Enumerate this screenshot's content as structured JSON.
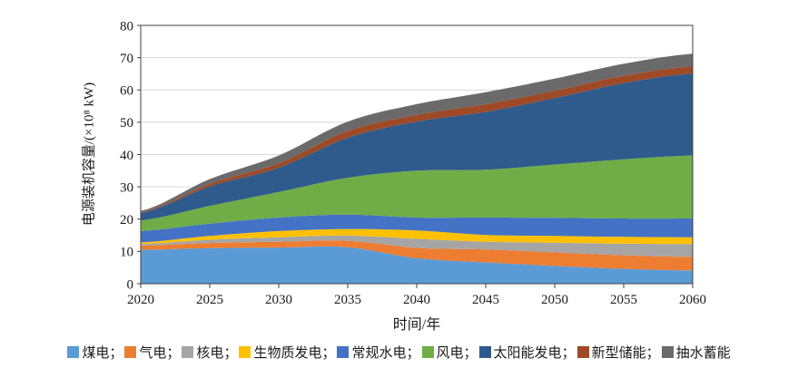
{
  "page": {
    "background": "#ffffff"
  },
  "chart_data": {
    "type": "area",
    "stacked": true,
    "title": "",
    "xlabel": "时间/年",
    "ylabel": "电源装机容量/(×10⁸ kW)",
    "x": [
      2020,
      2025,
      2030,
      2035,
      2040,
      2045,
      2050,
      2055,
      2060
    ],
    "ylim": [
      0,
      80
    ],
    "ytick_step": 10,
    "grid": "horizontal-only",
    "legend_position": "bottom",
    "legend_separator": "；",
    "axis_color": "#404040",
    "grid_color": "#D9D9D9",
    "tick_label_color": "#1a1a1a",
    "series": [
      {
        "key": "coal",
        "name": "煤电",
        "color": "#5B9BD5",
        "values": [
          10.5,
          11.0,
          11.2,
          11.3,
          7.9,
          6.6,
          5.5,
          4.6,
          4.1
        ]
      },
      {
        "key": "gas",
        "name": "气电",
        "color": "#ED7D31",
        "values": [
          1.3,
          1.6,
          1.8,
          2.0,
          3.2,
          4.0,
          4.2,
          4.2,
          4.2
        ]
      },
      {
        "key": "nuclear",
        "name": "核电",
        "color": "#A5A5A5",
        "values": [
          0.5,
          1.0,
          1.4,
          1.6,
          2.8,
          2.4,
          3.0,
          3.6,
          4.0
        ]
      },
      {
        "key": "biomass",
        "name": "生物质发电",
        "color": "#FFC000",
        "values": [
          0.5,
          1.2,
          1.9,
          2.0,
          2.6,
          2.1,
          2.1,
          2.1,
          2.1
        ]
      },
      {
        "key": "hydro",
        "name": "常规水电",
        "color": "#4472C4",
        "values": [
          3.5,
          3.8,
          4.2,
          4.5,
          4.0,
          5.4,
          5.6,
          5.7,
          5.8
        ]
      },
      {
        "key": "wind",
        "name": "风电",
        "color": "#70AD47",
        "values": [
          3.3,
          5.5,
          7.9,
          11.4,
          14.5,
          14.8,
          16.5,
          18.3,
          19.5
        ]
      },
      {
        "key": "solar",
        "name": "太阳能发电",
        "color": "#2E5B8C",
        "values": [
          2.3,
          6.0,
          7.5,
          12.4,
          15.2,
          17.9,
          20.6,
          23.6,
          25.4
        ]
      },
      {
        "key": "new-storage",
        "name": "新型储能",
        "color": "#9E4A26",
        "values": [
          0.2,
          0.8,
          1.4,
          2.1,
          2.1,
          2.4,
          2.3,
          2.3,
          2.2
        ]
      },
      {
        "key": "pumped-storage",
        "name": "抽水蓄能",
        "color": "#6A6A6A",
        "values": [
          0.4,
          1.5,
          2.4,
          2.9,
          3.3,
          3.7,
          3.7,
          3.7,
          3.9
        ]
      }
    ]
  }
}
